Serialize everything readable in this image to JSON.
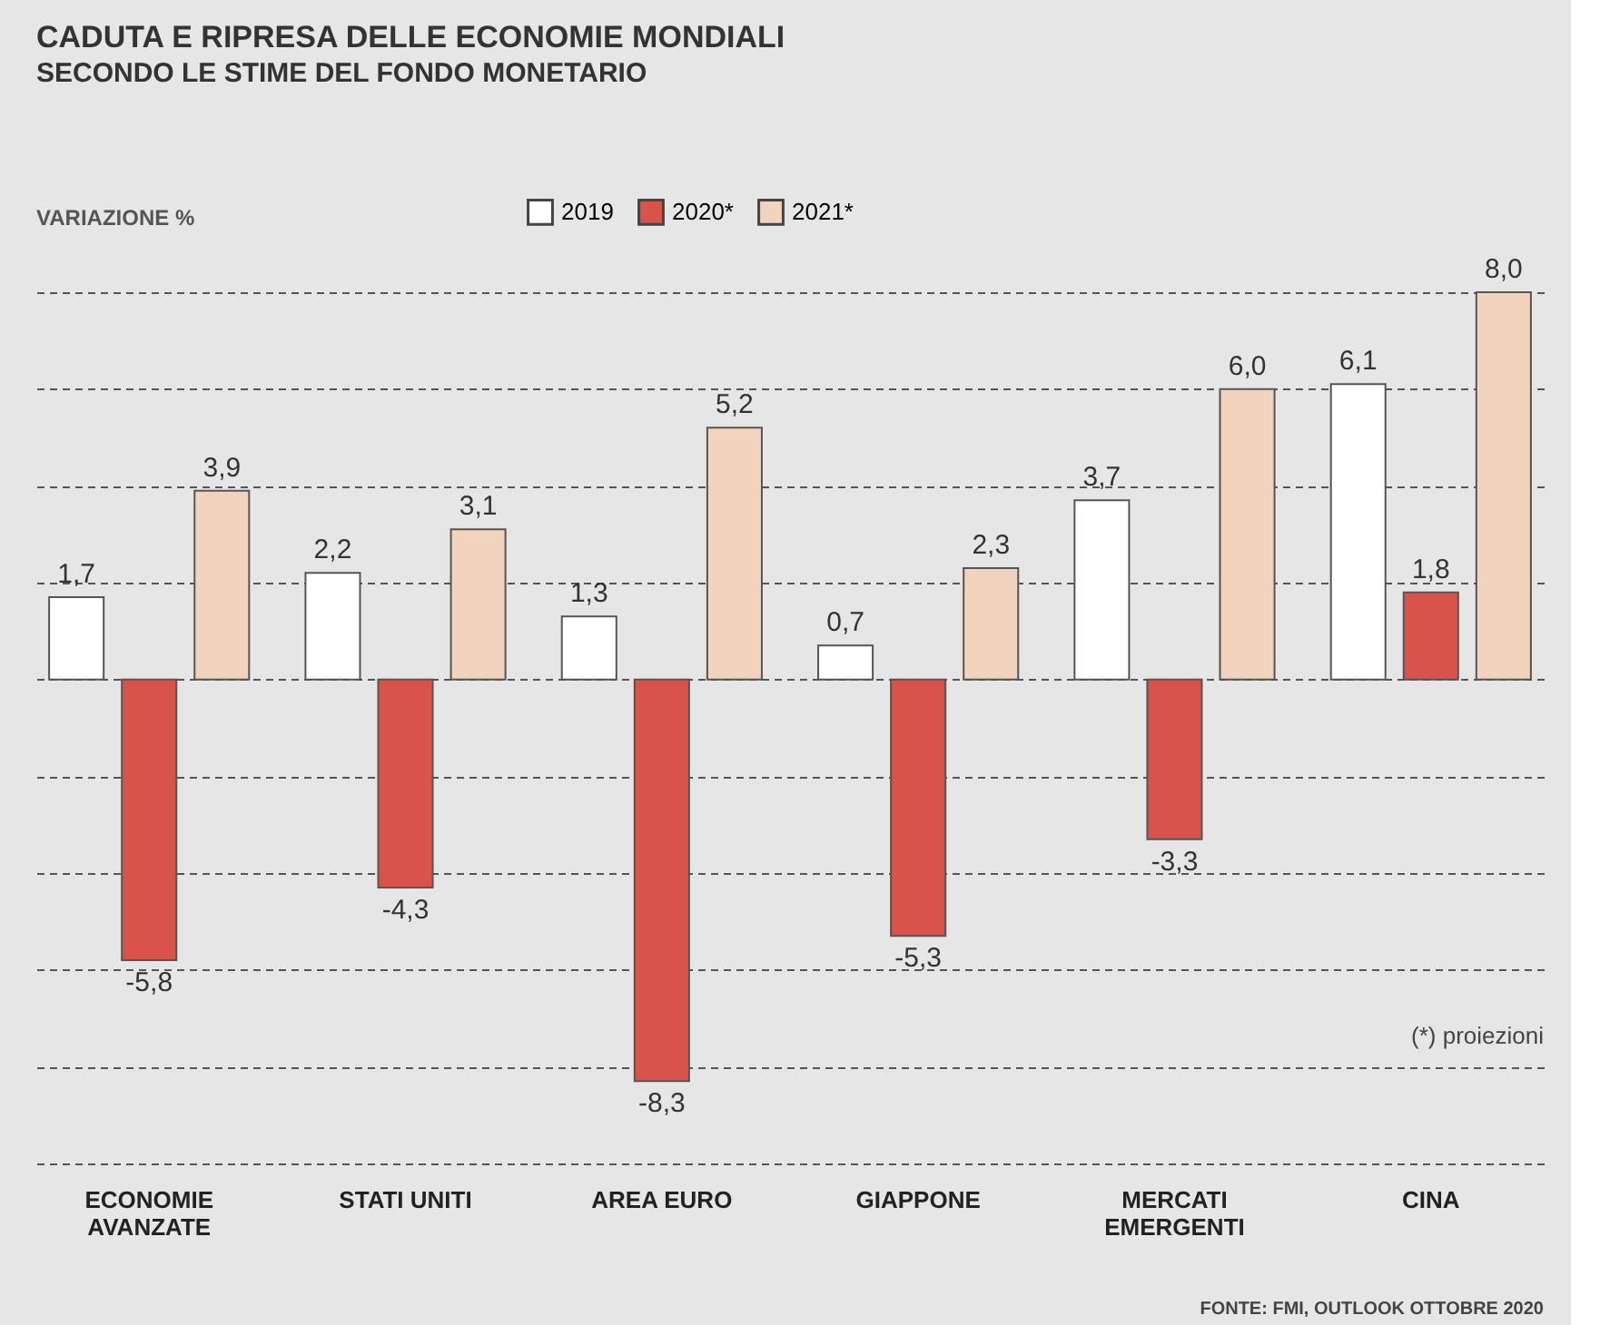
{
  "chart_data": {
    "type": "bar",
    "title": "CADUTA E RIPRESA DELLE ECONOMIE MONDIALI",
    "subtitle": "SECONDO LE STIME DEL FONDO MONETARIO",
    "ylabel": "VARIAZIONE %",
    "categories": [
      "ECONOMIE\nAVANZATE",
      "STATI UNITI",
      "AREA EURO",
      "GIAPPONE",
      "MERCATI\nEMERGENTI",
      "CINA"
    ],
    "series": [
      {
        "name": "2019",
        "color": "#ffffff",
        "values": [
          1.7,
          2.2,
          1.3,
          0.7,
          3.7,
          6.1
        ],
        "value_labels": [
          "1,7",
          "2,2",
          "1,3",
          "0,7",
          "3,7",
          "6,1"
        ]
      },
      {
        "name": "2020*",
        "color": "#d9534a",
        "values": [
          -5.8,
          -4.3,
          -8.3,
          -5.3,
          -3.3,
          1.8
        ],
        "value_labels": [
          "-5,8",
          "-4,3",
          "-8,3",
          "-5,3",
          "-3,3",
          "1,8"
        ]
      },
      {
        "name": "2021*",
        "color": "#f2d3bd",
        "values": [
          3.9,
          3.1,
          5.2,
          2.3,
          6.0,
          8.0
        ],
        "value_labels": [
          "3,9",
          "3,1",
          "5,2",
          "2,3",
          "6,0",
          "8,0"
        ]
      }
    ],
    "ylim": [
      -10,
      8
    ],
    "yticks": [
      -10,
      -8,
      -6,
      -4,
      -2,
      0,
      2,
      4,
      6,
      8
    ],
    "tick_labels": "x",
    "grid": "y",
    "legend": "top",
    "annotations": [
      "(*) proiezioni",
      "FONTE: FMI, OUTLOOK OTTOBRE 2020"
    ]
  }
}
